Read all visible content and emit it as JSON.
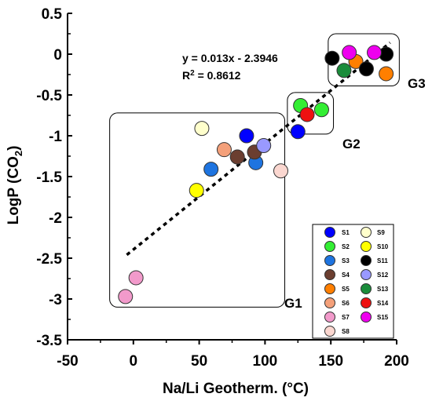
{
  "chart_data": {
    "type": "scatter",
    "title": "",
    "xlabel": "Na/Li Geotherm. (°C)",
    "ylabel_main": "LogP (CO",
    "ylabel_sub": "2",
    "ylabel_end": ")",
    "xlim": [
      -50,
      200
    ],
    "ylim": [
      -3.5,
      0.5
    ],
    "x_ticks": [
      -50,
      0,
      50,
      100,
      150,
      200
    ],
    "x_tick_labels": [
      "-50",
      "0",
      "50",
      "100",
      "150",
      "200"
    ],
    "y_ticks": [
      0.5,
      0,
      -0.5,
      -1,
      -1.5,
      -2,
      -2.5,
      -3,
      -3.5
    ],
    "y_tick_labels": [
      "0.5",
      "0",
      "-0.5",
      "-1",
      "-1.5",
      "-2",
      "-2.5",
      "-3",
      "-3.5"
    ],
    "grid": false,
    "legend_position": "bottom-right",
    "trendline": {
      "slope": 0.013,
      "intercept": -2.3946,
      "x_range": [
        -5,
        195
      ],
      "equation": "y = 0.013x - 2.3946",
      "r2_label": "R",
      "r2_sup": "2",
      "r2_value": " = 0.8612"
    },
    "groups": [
      {
        "label": "G1",
        "x_range": [
          -18,
          115
        ],
        "y_range": [
          -3.1,
          -0.72
        ]
      },
      {
        "label": "G2",
        "x_range": [
          117,
          152
        ],
        "y_range": [
          -0.98,
          -0.47
        ]
      },
      {
        "label": "G3",
        "x_range": [
          148,
          202
        ],
        "y_range": [
          0.25,
          -0.39
        ]
      }
    ],
    "series": [
      {
        "name": "S1",
        "color": "#0000ff",
        "points": [
          [
            86,
            -1.0
          ],
          [
            125,
            -0.95
          ]
        ]
      },
      {
        "name": "S2",
        "color": "#33ee33",
        "points": [
          [
            127,
            -0.63
          ],
          [
            143,
            -0.68
          ]
        ]
      },
      {
        "name": "S3",
        "color": "#1e74e0",
        "points": [
          [
            59,
            -1.41
          ],
          [
            93,
            -1.33
          ]
        ]
      },
      {
        "name": "S4",
        "color": "#6b3e30",
        "points": [
          [
            79,
            -1.26
          ],
          [
            92,
            -1.2
          ]
        ]
      },
      {
        "name": "S5",
        "color": "#ff7f00",
        "points": [
          [
            169,
            -0.09
          ]
        ]
      },
      {
        "name": "S6",
        "color": "#f4a07a",
        "points": [
          [
            69,
            -1.17
          ]
        ]
      },
      {
        "name": "S7",
        "color": "#f29acb",
        "points": [
          [
            -6,
            -2.97
          ],
          [
            2,
            -2.74
          ]
        ]
      },
      {
        "name": "S8",
        "color": "#fbd7d0",
        "points": [
          [
            112,
            -1.43
          ]
        ]
      },
      {
        "name": "S9",
        "color": "#ffffcc",
        "points": [
          [
            52,
            -0.91
          ]
        ]
      },
      {
        "name": "S10",
        "color": "#ffff00",
        "points": [
          [
            48,
            -1.67
          ]
        ]
      },
      {
        "name": "S11",
        "color": "#000000",
        "points": [
          [
            151,
            -0.05
          ],
          [
            177,
            -0.18
          ],
          [
            192,
            0.0
          ]
        ]
      },
      {
        "name": "S12",
        "color": "#9999ff",
        "points": [
          [
            99,
            -1.12
          ]
        ]
      },
      {
        "name": "S13",
        "color": "#1a8c3a",
        "points": [
          [
            160,
            -0.2
          ]
        ]
      },
      {
        "name": "S14",
        "color": "#ee1111",
        "points": [
          [
            132,
            -0.74
          ]
        ]
      },
      {
        "name": "S15",
        "color": "#ee00ee",
        "points": [
          [
            164,
            0.02
          ],
          [
            183,
            0.02
          ]
        ]
      },
      {
        "name": "",
        "color": "#ff7f00",
        "points": [
          [
            192,
            -0.24
          ]
        ]
      }
    ],
    "legend_left": [
      "S1",
      "S2",
      "S3",
      "S4",
      "S5",
      "S6",
      "S7",
      "S8"
    ],
    "legend_right": [
      "S9",
      "S10",
      "S11",
      "S12",
      "S13",
      "S14",
      "S15"
    ]
  }
}
